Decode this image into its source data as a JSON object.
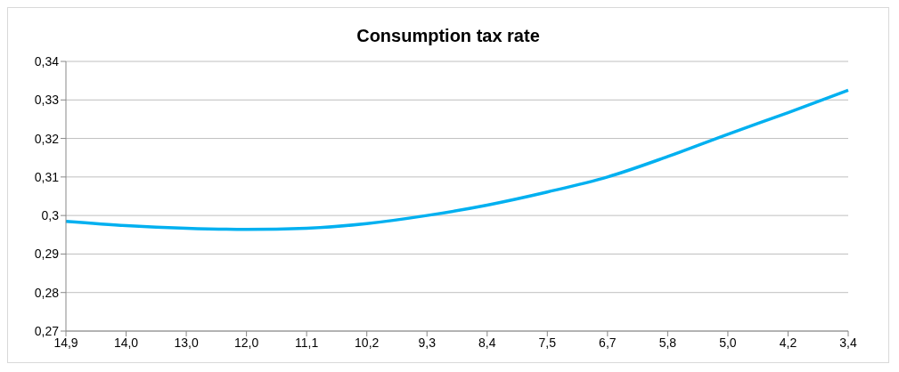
{
  "chart_data": {
    "type": "line",
    "title": "Consumption tax rate",
    "categories": [
      "14,9",
      "14,0",
      "13,0",
      "12,0",
      "11,1",
      "10,2",
      "9,3",
      "8,4",
      "7,5",
      "6,7",
      "5,8",
      "5,0",
      "4,2",
      "3,4"
    ],
    "series": [
      {
        "color": "#00b0f0",
        "values": [
          0.2985,
          0.2974,
          0.2967,
          0.2964,
          0.2967,
          0.2979,
          0.3,
          0.3027,
          0.3061,
          0.31,
          0.3153,
          0.3211,
          0.3267,
          0.3325
        ]
      }
    ],
    "ylim": [
      0.27,
      0.34
    ],
    "yticks": [
      {
        "value": 0.27,
        "label": "0,27"
      },
      {
        "value": 0.28,
        "label": "0,28"
      },
      {
        "value": 0.29,
        "label": "0,29"
      },
      {
        "value": 0.3,
        "label": "0,3"
      },
      {
        "value": 0.31,
        "label": "0,31"
      },
      {
        "value": 0.32,
        "label": "0,32"
      },
      {
        "value": 0.33,
        "label": "0,33"
      },
      {
        "value": 0.34,
        "label": "0,34"
      }
    ],
    "grid": "y",
    "marker": "none",
    "line_style": "solid",
    "legend": false
  }
}
